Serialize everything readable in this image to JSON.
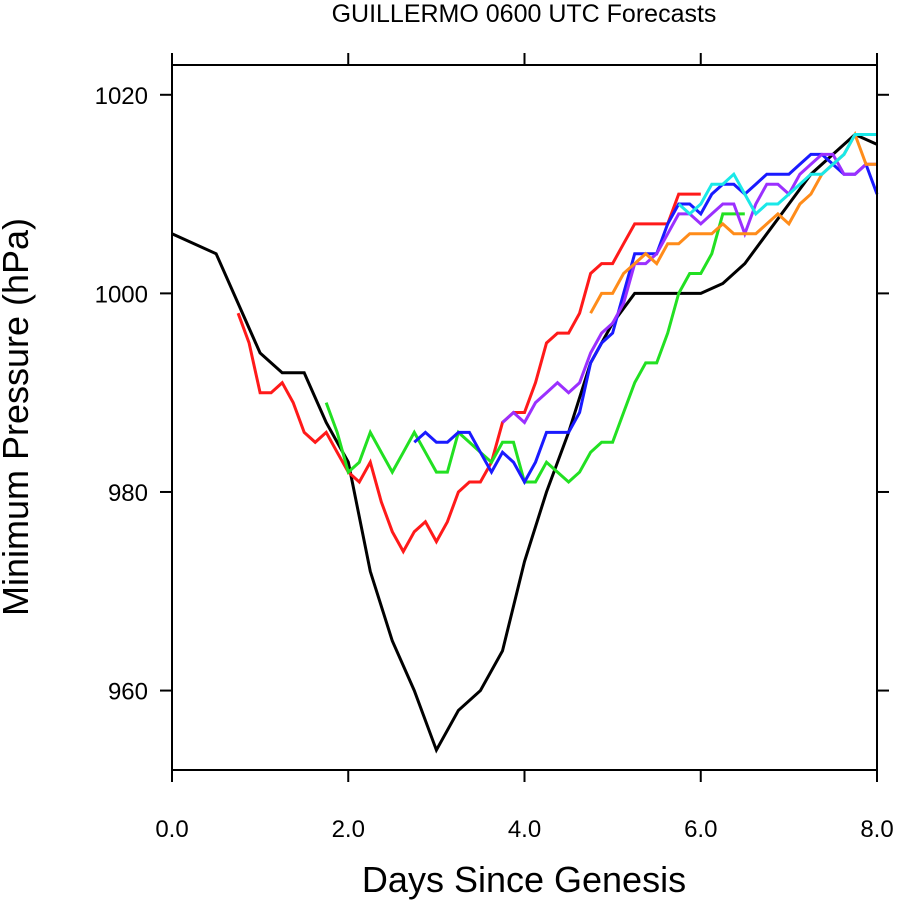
{
  "chart_data": {
    "type": "line",
    "title": "GUILLERMO 0600 UTC Forecasts",
    "xlabel": "Days Since Genesis",
    "ylabel": "Minimum Pressure (hPa)",
    "xlim": [
      0,
      8
    ],
    "ylim": [
      952,
      1023
    ],
    "x_ticks": [
      0,
      2,
      4,
      6,
      8
    ],
    "x_tick_labels": [
      "0.0",
      "2.0",
      "4.0",
      "6.0",
      "8.0"
    ],
    "y_ticks": [
      960,
      980,
      1000,
      1020
    ],
    "y_tick_labels": [
      "960",
      "980",
      "1000",
      "1020"
    ],
    "grid": false,
    "legend": "none",
    "series": [
      {
        "color": "#000000",
        "points": [
          [
            0,
            1006
          ],
          [
            0.5,
            1004
          ],
          [
            1.0,
            994
          ],
          [
            1.25,
            992
          ],
          [
            1.5,
            992
          ],
          [
            1.75,
            987
          ],
          [
            2.0,
            983
          ],
          [
            2.25,
            972
          ],
          [
            2.5,
            965
          ],
          [
            2.75,
            960
          ],
          [
            3.0,
            954
          ],
          [
            3.25,
            958
          ],
          [
            3.5,
            960
          ],
          [
            3.75,
            964
          ],
          [
            4.0,
            973
          ],
          [
            4.25,
            980
          ],
          [
            4.5,
            986
          ],
          [
            4.75,
            993
          ],
          [
            5.0,
            997
          ],
          [
            5.25,
            1000
          ],
          [
            5.5,
            1000
          ],
          [
            5.75,
            1000
          ],
          [
            6.0,
            1000
          ],
          [
            6.25,
            1001
          ],
          [
            6.5,
            1003
          ],
          [
            6.75,
            1006
          ],
          [
            7.0,
            1009
          ],
          [
            7.25,
            1012
          ],
          [
            7.5,
            1014
          ],
          [
            7.75,
            1016
          ],
          [
            8.0,
            1015
          ]
        ]
      },
      {
        "color": "#ff1a1a",
        "points": [
          [
            0.75,
            998
          ],
          [
            0.875,
            995
          ],
          [
            1.0,
            990
          ],
          [
            1.125,
            990
          ],
          [
            1.25,
            991
          ],
          [
            1.375,
            989
          ],
          [
            1.5,
            986
          ],
          [
            1.625,
            985
          ],
          [
            1.75,
            986
          ],
          [
            1.875,
            984
          ],
          [
            2.0,
            982
          ],
          [
            2.125,
            981
          ],
          [
            2.25,
            983
          ],
          [
            2.375,
            979
          ],
          [
            2.5,
            976
          ],
          [
            2.625,
            974
          ],
          [
            2.75,
            976
          ],
          [
            2.875,
            977
          ],
          [
            3.0,
            975
          ],
          [
            3.125,
            977
          ],
          [
            3.25,
            980
          ],
          [
            3.375,
            981
          ],
          [
            3.5,
            981
          ],
          [
            3.625,
            983
          ],
          [
            3.75,
            987
          ],
          [
            3.875,
            988
          ],
          [
            4.0,
            988
          ],
          [
            4.125,
            991
          ],
          [
            4.25,
            995
          ],
          [
            4.375,
            996
          ],
          [
            4.5,
            996
          ],
          [
            4.625,
            998
          ],
          [
            4.75,
            1002
          ],
          [
            4.875,
            1003
          ],
          [
            5.0,
            1003
          ],
          [
            5.125,
            1005
          ],
          [
            5.25,
            1007
          ],
          [
            5.375,
            1007
          ],
          [
            5.5,
            1007
          ],
          [
            5.625,
            1007
          ],
          [
            5.75,
            1010
          ],
          [
            6.0,
            1010
          ]
        ]
      },
      {
        "color": "#22e022",
        "points": [
          [
            1.75,
            989
          ],
          [
            1.875,
            986
          ],
          [
            2.0,
            982
          ],
          [
            2.125,
            983
          ],
          [
            2.25,
            986
          ],
          [
            2.375,
            984
          ],
          [
            2.5,
            982
          ],
          [
            2.625,
            984
          ],
          [
            2.75,
            986
          ],
          [
            2.875,
            984
          ],
          [
            3.0,
            982
          ],
          [
            3.125,
            982
          ],
          [
            3.25,
            986
          ],
          [
            3.375,
            985
          ],
          [
            3.5,
            984
          ],
          [
            3.625,
            983
          ],
          [
            3.75,
            985
          ],
          [
            3.875,
            985
          ],
          [
            4.0,
            981
          ],
          [
            4.125,
            981
          ],
          [
            4.25,
            983
          ],
          [
            4.375,
            982
          ],
          [
            4.5,
            981
          ],
          [
            4.625,
            982
          ],
          [
            4.75,
            984
          ],
          [
            4.875,
            985
          ],
          [
            5.0,
            985
          ],
          [
            5.125,
            988
          ],
          [
            5.25,
            991
          ],
          [
            5.375,
            993
          ],
          [
            5.5,
            993
          ],
          [
            5.625,
            996
          ],
          [
            5.75,
            1000
          ],
          [
            5.875,
            1002
          ],
          [
            6.0,
            1002
          ],
          [
            6.125,
            1004
          ],
          [
            6.25,
            1008
          ],
          [
            6.375,
            1008
          ],
          [
            6.5,
            1008
          ]
        ]
      },
      {
        "color": "#1a1aff",
        "points": [
          [
            2.75,
            985
          ],
          [
            2.875,
            986
          ],
          [
            3.0,
            985
          ],
          [
            3.125,
            985
          ],
          [
            3.25,
            986
          ],
          [
            3.375,
            986
          ],
          [
            3.5,
            984
          ],
          [
            3.625,
            982
          ],
          [
            3.75,
            984
          ],
          [
            3.875,
            983
          ],
          [
            4.0,
            981
          ],
          [
            4.125,
            983
          ],
          [
            4.25,
            986
          ],
          [
            4.375,
            986
          ],
          [
            4.5,
            986
          ],
          [
            4.625,
            988
          ],
          [
            4.75,
            993
          ],
          [
            4.875,
            995
          ],
          [
            5.0,
            996
          ],
          [
            5.125,
            1000
          ],
          [
            5.25,
            1004
          ],
          [
            5.375,
            1004
          ],
          [
            5.5,
            1004
          ],
          [
            5.625,
            1007
          ],
          [
            5.75,
            1009
          ],
          [
            5.875,
            1009
          ],
          [
            6.0,
            1008
          ],
          [
            6.125,
            1010
          ],
          [
            6.25,
            1011
          ],
          [
            6.375,
            1011
          ],
          [
            6.5,
            1010
          ],
          [
            6.625,
            1011
          ],
          [
            6.75,
            1012
          ],
          [
            6.875,
            1012
          ],
          [
            7.0,
            1012
          ],
          [
            7.125,
            1013
          ],
          [
            7.25,
            1014
          ],
          [
            7.375,
            1014
          ],
          [
            7.5,
            1013
          ],
          [
            7.625,
            1012
          ],
          [
            7.75,
            1012
          ],
          [
            7.875,
            1013
          ],
          [
            8.0,
            1010
          ]
        ]
      },
      {
        "color": "#9b30ff",
        "points": [
          [
            3.75,
            987
          ],
          [
            3.875,
            988
          ],
          [
            4.0,
            987
          ],
          [
            4.125,
            989
          ],
          [
            4.25,
            990
          ],
          [
            4.375,
            991
          ],
          [
            4.5,
            990
          ],
          [
            4.625,
            991
          ],
          [
            4.75,
            994
          ],
          [
            4.875,
            996
          ],
          [
            5.0,
            997
          ],
          [
            5.125,
            999
          ],
          [
            5.25,
            1003
          ],
          [
            5.375,
            1003
          ],
          [
            5.5,
            1004
          ],
          [
            5.625,
            1006
          ],
          [
            5.75,
            1008
          ],
          [
            5.875,
            1008
          ],
          [
            6.0,
            1007
          ],
          [
            6.125,
            1008
          ],
          [
            6.25,
            1009
          ],
          [
            6.375,
            1009
          ],
          [
            6.5,
            1006
          ],
          [
            6.625,
            1009
          ],
          [
            6.75,
            1011
          ],
          [
            6.875,
            1011
          ],
          [
            7.0,
            1010
          ],
          [
            7.125,
            1012
          ],
          [
            7.25,
            1013
          ],
          [
            7.375,
            1014
          ],
          [
            7.5,
            1014
          ],
          [
            7.625,
            1012
          ],
          [
            7.75,
            1012
          ],
          [
            7.875,
            1013
          ],
          [
            8.0,
            1013
          ]
        ]
      },
      {
        "color": "#ff8c1a",
        "points": [
          [
            4.75,
            998
          ],
          [
            4.875,
            1000
          ],
          [
            5.0,
            1000
          ],
          [
            5.125,
            1002
          ],
          [
            5.25,
            1003
          ],
          [
            5.375,
            1004
          ],
          [
            5.5,
            1003
          ],
          [
            5.625,
            1005
          ],
          [
            5.75,
            1005
          ],
          [
            5.875,
            1006
          ],
          [
            6.0,
            1006
          ],
          [
            6.125,
            1006
          ],
          [
            6.25,
            1007
          ],
          [
            6.375,
            1006
          ],
          [
            6.5,
            1006
          ],
          [
            6.625,
            1006
          ],
          [
            6.75,
            1007
          ],
          [
            6.875,
            1008
          ],
          [
            7.0,
            1007
          ],
          [
            7.125,
            1009
          ],
          [
            7.25,
            1010
          ],
          [
            7.375,
            1012
          ],
          [
            7.5,
            1013
          ],
          [
            7.625,
            1014
          ],
          [
            7.75,
            1016
          ],
          [
            7.875,
            1013
          ],
          [
            8.0,
            1013
          ]
        ]
      },
      {
        "color": "#1ae8e8",
        "points": [
          [
            5.75,
            1009
          ],
          [
            5.875,
            1008
          ],
          [
            6.0,
            1009
          ],
          [
            6.125,
            1011
          ],
          [
            6.25,
            1011
          ],
          [
            6.375,
            1012
          ],
          [
            6.5,
            1010
          ],
          [
            6.625,
            1008
          ],
          [
            6.75,
            1009
          ],
          [
            6.875,
            1009
          ],
          [
            7.0,
            1010
          ],
          [
            7.125,
            1011
          ],
          [
            7.25,
            1012
          ],
          [
            7.375,
            1012
          ],
          [
            7.5,
            1013
          ],
          [
            7.625,
            1014
          ],
          [
            7.75,
            1016
          ],
          [
            7.875,
            1016
          ],
          [
            8.0,
            1016
          ]
        ]
      }
    ]
  }
}
